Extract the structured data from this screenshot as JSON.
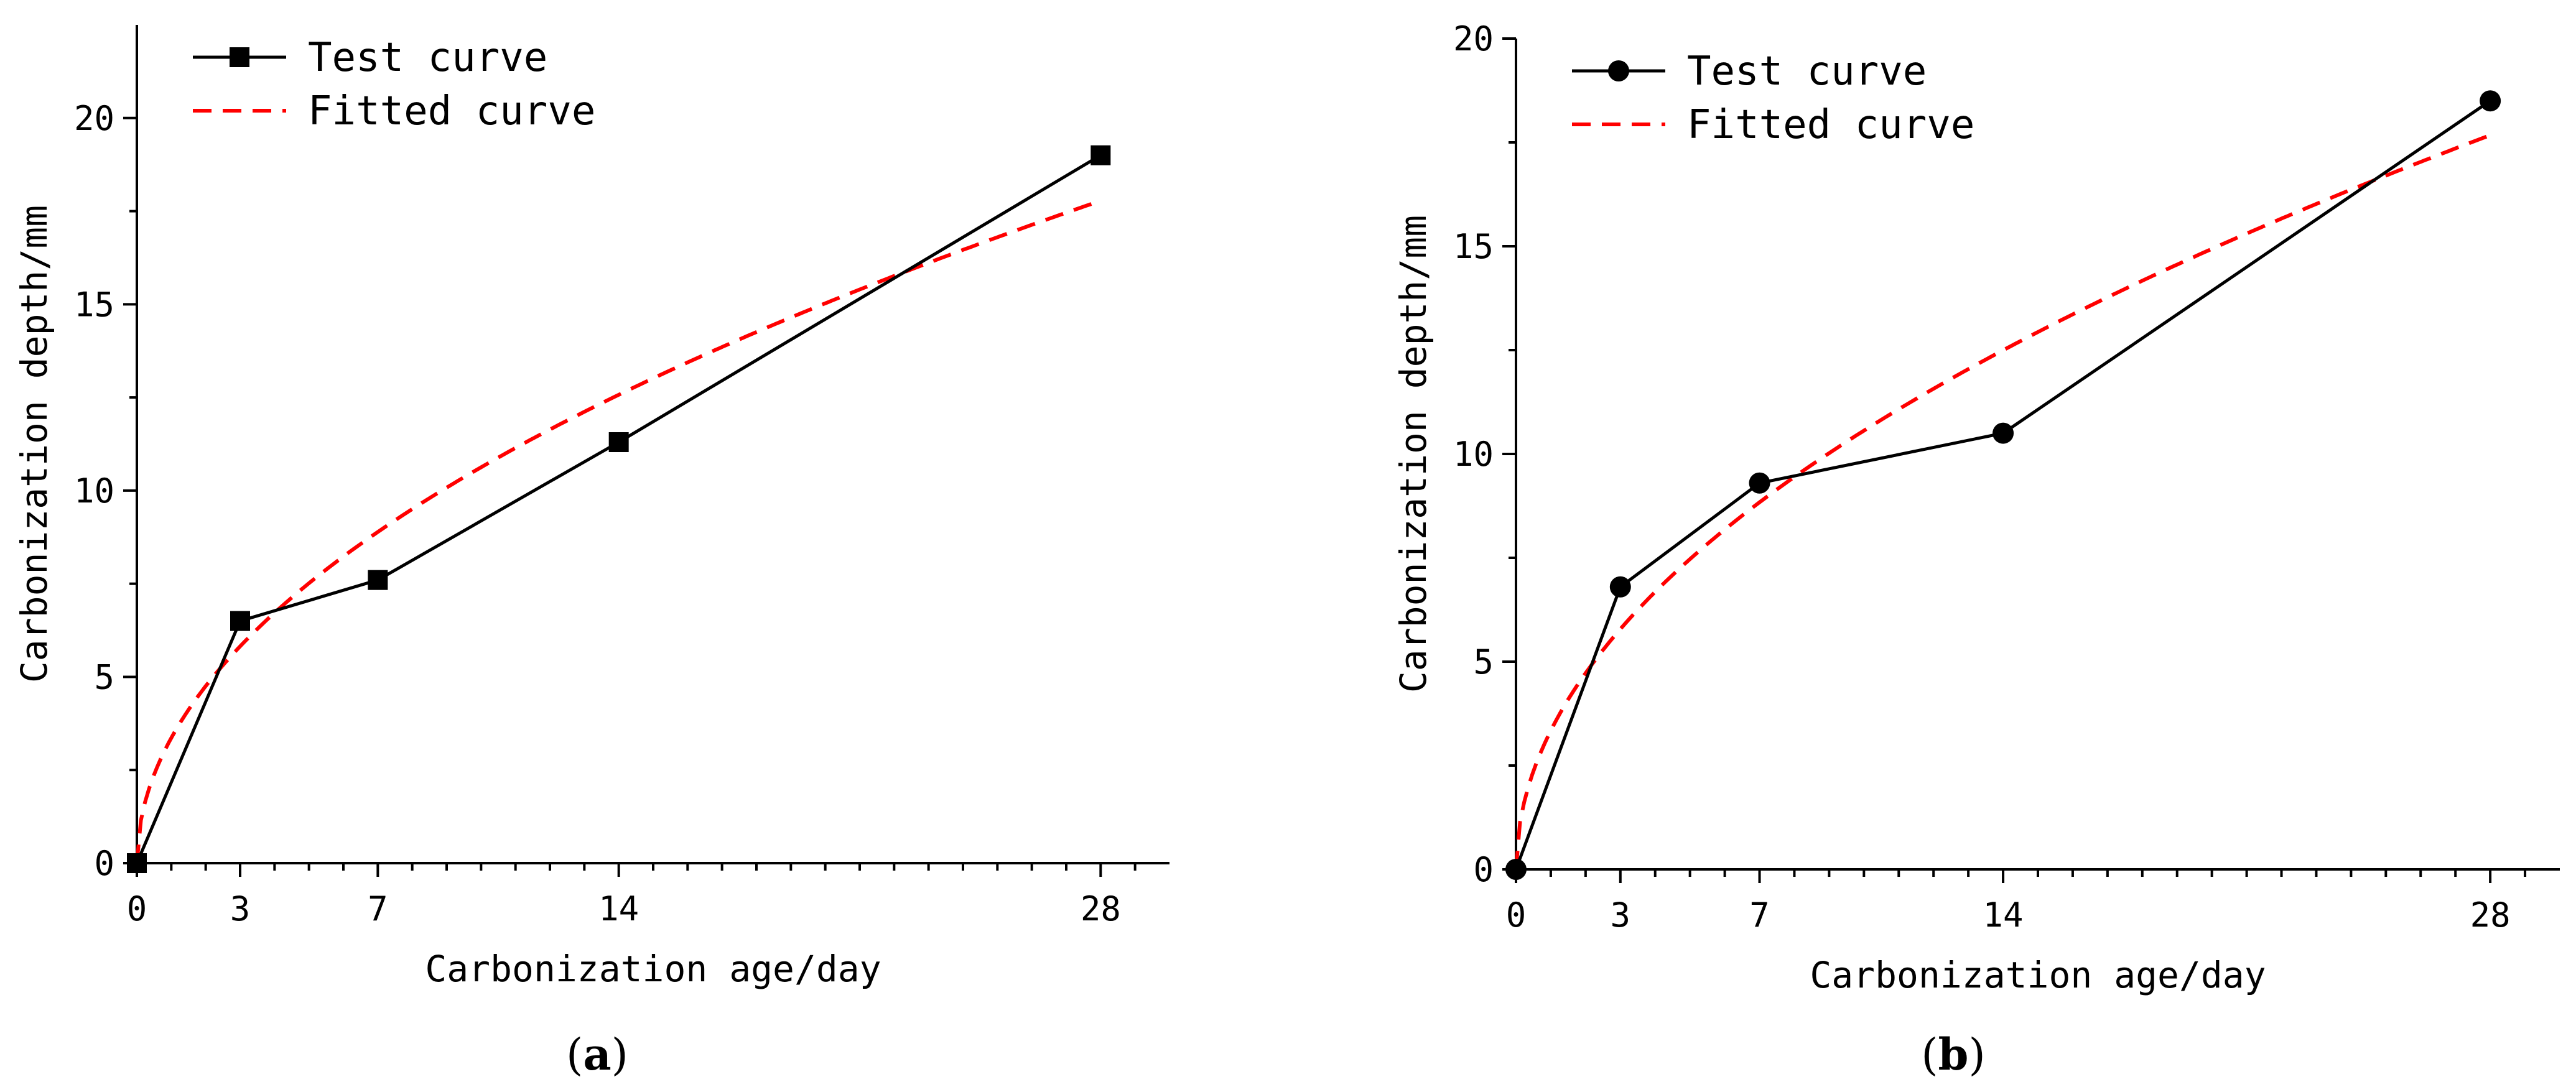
{
  "colors": {
    "test": "#000000",
    "fitted": "#ff0000"
  },
  "chart_data": [
    {
      "panel": "a",
      "panel_label": "a",
      "type": "line",
      "marker": "square",
      "xlabel": "Carbonization age/day",
      "ylabel": "Carbonization depth/mm",
      "xlim": [
        0,
        30
      ],
      "ylim": [
        0,
        22.5
      ],
      "xticks": [
        0,
        3,
        7,
        14,
        28
      ],
      "yticks": [
        0,
        5,
        10,
        15,
        20
      ],
      "legend": {
        "position": "top-left",
        "test_label": "Test curve",
        "fitted_label": "Fitted curve"
      },
      "series": [
        {
          "name": "Test curve",
          "x": [
            0,
            3,
            7,
            14,
            28
          ],
          "values": [
            0,
            6.5,
            7.6,
            11.3,
            19.0
          ]
        },
        {
          "name": "Fitted curve",
          "model": "sqrt",
          "coefficient": 3.36,
          "x_range": [
            0,
            28
          ]
        }
      ]
    },
    {
      "panel": "b",
      "panel_label": "b",
      "type": "line",
      "marker": "circle",
      "xlabel": "Carbonization age/day",
      "ylabel": "Carbonization depth/mm",
      "xlim": [
        0,
        30
      ],
      "ylim": [
        0,
        20
      ],
      "xticks": [
        0,
        3,
        7,
        14,
        28
      ],
      "yticks": [
        0,
        5,
        10,
        15,
        20
      ],
      "legend": {
        "position": "top-left",
        "test_label": "Test curve",
        "fitted_label": "Fitted curve"
      },
      "series": [
        {
          "name": "Test curve",
          "x": [
            0,
            3,
            7,
            14,
            28
          ],
          "values": [
            0,
            6.8,
            9.3,
            10.5,
            18.5
          ]
        },
        {
          "name": "Fitted curve",
          "model": "sqrt",
          "coefficient": 3.34,
          "x_range": [
            0,
            28
          ]
        }
      ]
    }
  ]
}
